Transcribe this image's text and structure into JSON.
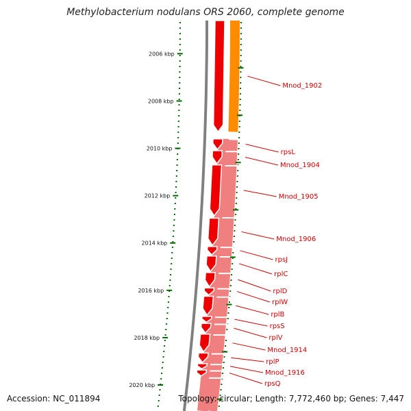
{
  "title": "Methylobacterium nodulans ORS 2060, complete genome",
  "accession": "Accession: NC_011894",
  "topology": "Topology: circular; Length: 7,772,460 bp; Genes: 7,447",
  "ticks": [
    {
      "label": "2006 kbp",
      "kbp": 2006
    },
    {
      "label": "2008 kbp",
      "kbp": 2008
    },
    {
      "label": "2010 kbp",
      "kbp": 2010
    },
    {
      "label": "2012 kbp",
      "kbp": 2012
    },
    {
      "label": "2014 kbp",
      "kbp": 2014
    },
    {
      "label": "2016 kbp",
      "kbp": 2016
    },
    {
      "label": "2018 kbp",
      "kbp": 2018
    },
    {
      "label": "2020 kbp",
      "kbp": 2020
    }
  ],
  "genes": [
    {
      "label": "Mnod_1902",
      "start_kbp": 2004.5,
      "end_kbp": 2009.3
    },
    {
      "label": "rpsL",
      "start_kbp": 2009.6,
      "end_kbp": 2010.05
    },
    {
      "label": "Mnod_1904",
      "start_kbp": 2010.1,
      "end_kbp": 2010.65
    },
    {
      "label": "Mnod_1905",
      "start_kbp": 2010.7,
      "end_kbp": 2012.85
    },
    {
      "label": "Mnod_1906",
      "start_kbp": 2012.95,
      "end_kbp": 2014.1
    },
    {
      "label": "rpsJ",
      "start_kbp": 2014.15,
      "end_kbp": 2014.5
    },
    {
      "label": "rplC",
      "start_kbp": 2014.55,
      "end_kbp": 2015.2
    },
    {
      "label": "rplD",
      "start_kbp": 2015.25,
      "end_kbp": 2015.85
    },
    {
      "label": "rplW",
      "start_kbp": 2015.9,
      "end_kbp": 2016.2
    },
    {
      "label": "rplB",
      "start_kbp": 2016.25,
      "end_kbp": 2017.05
    },
    {
      "label": "rpsS",
      "start_kbp": 2017.1,
      "end_kbp": 2017.35
    },
    {
      "label": "rplV",
      "start_kbp": 2017.4,
      "end_kbp": 2017.8
    },
    {
      "label": "Mnod_1914",
      "start_kbp": 2017.85,
      "end_kbp": 2018.6
    },
    {
      "label": "rplP",
      "start_kbp": 2018.65,
      "end_kbp": 2019.05
    },
    {
      "label": "Mnod_1916",
      "start_kbp": 2019.1,
      "end_kbp": 2019.32
    },
    {
      "label": "rpsQ",
      "start_kbp": 2019.37,
      "end_kbp": 2019.62
    }
  ],
  "colors": {
    "cds": "#ee0000",
    "cds_light": "#f08080",
    "orange": "#ff8c00",
    "backbone": "#808080",
    "ticks": "#006600",
    "labels": "#cc0000"
  }
}
